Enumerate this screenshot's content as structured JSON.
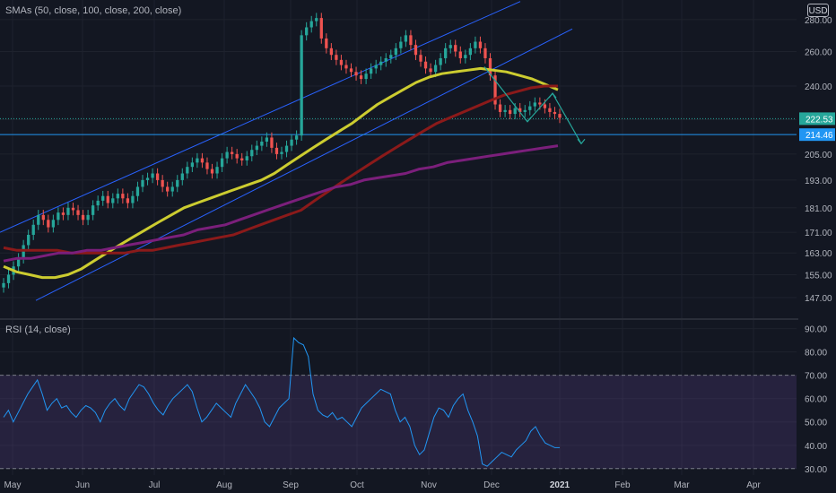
{
  "chart_data": [
    {
      "type": "candlestick",
      "title": "SMAs (50, close, 100, close, 200, close)",
      "currency": "USD",
      "y_scale": "log",
      "ylim": [
        141,
        293
      ],
      "y_ticks": [
        "280.00",
        "260.00",
        "240.00",
        "222.00",
        "205.00",
        "193.00",
        "181.00",
        "171.00",
        "163.00",
        "155.00",
        "147.00"
      ],
      "x_ticks": [
        "May",
        "Jun",
        "Jul",
        "Aug",
        "Sep",
        "Oct",
        "Nov",
        "Dec",
        "2021",
        "Feb",
        "Mar",
        "Apr"
      ],
      "last_price": "222.53",
      "horizontal_level": "214.46",
      "candle_colors": {
        "up": "#26a69a",
        "down": "#ef5350"
      },
      "candles_close": [
        152,
        155,
        158,
        161,
        166,
        170,
        174,
        178,
        176,
        173,
        176,
        179,
        178,
        181,
        180,
        178,
        176,
        178,
        182,
        184,
        186,
        183,
        185,
        187,
        185,
        183,
        186,
        190,
        193,
        194,
        196,
        193,
        190,
        188,
        190,
        193,
        196,
        199,
        201,
        203,
        201,
        198,
        196,
        199,
        203,
        206,
        205,
        203,
        202,
        204,
        207,
        209,
        211,
        213,
        208,
        205,
        206,
        209,
        212,
        214,
        270,
        275,
        279,
        281,
        268,
        262,
        258,
        255,
        252,
        250,
        248,
        246,
        244,
        247,
        250,
        252,
        254,
        256,
        258,
        262,
        266,
        270,
        264,
        258,
        254,
        250,
        248,
        252,
        256,
        262,
        264,
        260,
        256,
        258,
        262,
        266,
        262,
        256,
        246,
        230,
        226,
        227,
        225,
        228,
        226,
        227,
        229,
        231,
        230,
        228,
        226,
        225,
        223
      ],
      "series": [
        {
          "name": "SMA 50",
          "color": "#cccc30",
          "values": [
            158,
            156,
            155,
            154,
            154,
            155,
            157,
            160,
            163,
            166,
            169,
            172,
            175,
            178,
            181,
            183,
            185,
            187,
            189,
            191,
            193,
            196,
            200,
            204,
            208,
            212,
            216,
            220,
            225,
            230,
            234,
            238,
            242,
            245,
            247,
            248,
            249,
            250,
            249,
            248,
            246,
            244,
            241,
            238
          ]
        },
        {
          "name": "SMA 100",
          "color": "#8b1a1a",
          "values": [
            165,
            164,
            164,
            164,
            164,
            163,
            163,
            163,
            163,
            163,
            164,
            164,
            165,
            166,
            167,
            168,
            169,
            170,
            172,
            174,
            176,
            178,
            180,
            184,
            188,
            192,
            196,
            200,
            204,
            208,
            212,
            216,
            220,
            223,
            226,
            229,
            232,
            235,
            237,
            239,
            240,
            240
          ]
        },
        {
          "name": "SMA 200",
          "color": "#7b1f7b",
          "values": [
            160,
            161,
            161,
            162,
            163,
            163,
            164,
            164,
            165,
            166,
            167,
            168,
            169,
            170,
            172,
            173,
            174,
            176,
            178,
            180,
            182,
            184,
            186,
            188,
            190,
            191,
            193,
            194,
            195,
            196,
            198,
            199,
            201,
            202,
            203,
            204,
            205,
            206,
            207,
            208,
            209
          ]
        }
      ],
      "annotations": [
        {
          "type": "parallel-channel",
          "color": "#2962ff"
        },
        {
          "type": "horizontal-line",
          "value": 214.46,
          "color": "#2196f3"
        },
        {
          "type": "path-arrows",
          "color": "#26a69a",
          "points": [
            [
              251,
              96
            ],
            [
              221,
              107
            ],
            [
              236,
              104
            ],
            [
              210,
              146
            ]
          ]
        }
      ]
    },
    {
      "type": "line",
      "title": "RSI (14, close)",
      "ylim": [
        28,
        91
      ],
      "y_ticks": [
        "90.00",
        "80.00",
        "70.00",
        "60.00",
        "50.00",
        "40.00",
        "30.00"
      ],
      "bands": [
        70,
        30
      ],
      "band_fill": "#7e57c2",
      "line_color": "#2196f3",
      "values": [
        52,
        55,
        50,
        54,
        58,
        62,
        65,
        68,
        62,
        55,
        58,
        60,
        56,
        57,
        54,
        52,
        55,
        57,
        56,
        54,
        50,
        55,
        58,
        60,
        57,
        55,
        60,
        63,
        66,
        65,
        62,
        58,
        55,
        53,
        57,
        60,
        62,
        64,
        66,
        63,
        56,
        50,
        52,
        55,
        58,
        56,
        54,
        52,
        58,
        62,
        66,
        63,
        60,
        56,
        50,
        48,
        52,
        56,
        58,
        60,
        86,
        84,
        83,
        78,
        62,
        55,
        53,
        52,
        54,
        51,
        52,
        50,
        48,
        52,
        56,
        58,
        60,
        62,
        64,
        63,
        62,
        55,
        50,
        52,
        48,
        40,
        36,
        38,
        45,
        52,
        56,
        55,
        52,
        57,
        60,
        62,
        55,
        50,
        44,
        32,
        31,
        33,
        35,
        37,
        36,
        35,
        38,
        40,
        42,
        46,
        48,
        44,
        41,
        40,
        39,
        39
      ]
    }
  ]
}
